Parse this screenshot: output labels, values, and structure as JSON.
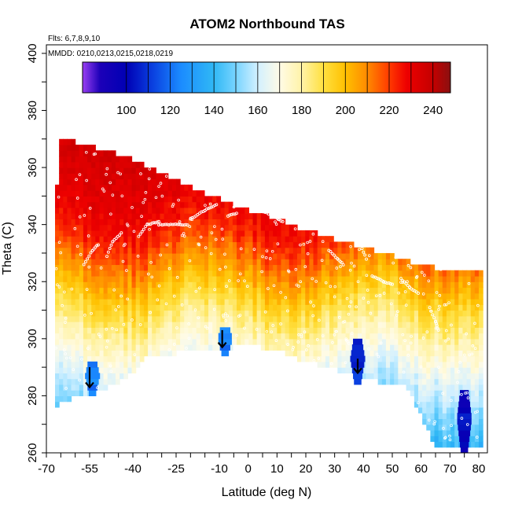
{
  "chart_data": {
    "type": "heatmap",
    "title": "ATOM2 Northbound TAS",
    "annotations": {
      "flights": "Flts: 6,7,8,9,10",
      "dates": "MMDD: 0210,0213,0215,0218,0219"
    },
    "xlabel": "Latitude (deg N)",
    "ylabel": "Theta (C)",
    "xlim": [
      -70,
      83
    ],
    "ylim": [
      260,
      403
    ],
    "x_ticks": [
      "-70",
      "-55",
      "-40",
      "-25",
      "-10",
      "0",
      "10",
      "20",
      "30",
      "40",
      "50",
      "60",
      "70",
      "80"
    ],
    "y_ticks": [
      "260",
      "280",
      "300",
      "320",
      "340",
      "360",
      "380",
      "400"
    ],
    "colorbar": {
      "range": [
        80,
        248
      ],
      "ticks": [
        "100",
        "120",
        "140",
        "160",
        "180",
        "200",
        "220",
        "240"
      ],
      "stops": [
        {
          "v": 80,
          "c": "#9a3ff2"
        },
        {
          "v": 88,
          "c": "#1c00b8"
        },
        {
          "v": 100,
          "c": "#0000b4"
        },
        {
          "v": 112,
          "c": "#0a40e0"
        },
        {
          "v": 125,
          "c": "#1b8cff"
        },
        {
          "v": 140,
          "c": "#30b8f5"
        },
        {
          "v": 150,
          "c": "#78d4ff"
        },
        {
          "v": 160,
          "c": "#d2f0ff"
        },
        {
          "v": 170,
          "c": "#fffbe6"
        },
        {
          "v": 180,
          "c": "#fff3a8"
        },
        {
          "v": 190,
          "c": "#ffe040"
        },
        {
          "v": 200,
          "c": "#ffc000"
        },
        {
          "v": 210,
          "c": "#ff8a00"
        },
        {
          "v": 220,
          "c": "#ff3a00"
        },
        {
          "v": 228,
          "c": "#ee0000"
        },
        {
          "v": 240,
          "c": "#c40000"
        },
        {
          "v": 248,
          "c": "#8a1010"
        }
      ]
    },
    "top_boundary": [
      [
        -67,
        345
      ],
      [
        -65,
        369
      ],
      [
        -60,
        369
      ],
      [
        -50,
        366
      ],
      [
        -40,
        363
      ],
      [
        -30,
        358
      ],
      [
        -20,
        353
      ],
      [
        -10,
        349
      ],
      [
        0,
        345
      ],
      [
        10,
        342
      ],
      [
        20,
        338
      ],
      [
        30,
        335
      ],
      [
        40,
        332
      ],
      [
        50,
        329
      ],
      [
        60,
        326
      ],
      [
        70,
        324
      ],
      [
        80,
        323
      ]
    ],
    "bottom_boundary": [
      [
        -67,
        277
      ],
      [
        -60,
        281
      ],
      [
        -50,
        283
      ],
      [
        -40,
        289
      ],
      [
        -35,
        295
      ],
      [
        -25,
        296
      ],
      [
        -10,
        297
      ],
      [
        0,
        299
      ],
      [
        10,
        297
      ],
      [
        20,
        293
      ],
      [
        35,
        289
      ],
      [
        45,
        286
      ],
      [
        50,
        284
      ],
      [
        55,
        285
      ],
      [
        60,
        274
      ],
      [
        65,
        263
      ],
      [
        72,
        262
      ],
      [
        80,
        262
      ]
    ],
    "profile": [
      [
        262,
        135
      ],
      [
        275,
        150
      ],
      [
        285,
        160
      ],
      [
        292,
        168
      ],
      [
        298,
        175
      ],
      [
        305,
        183
      ],
      [
        312,
        192
      ],
      [
        320,
        203
      ],
      [
        327,
        212
      ],
      [
        333,
        220
      ],
      [
        340,
        226
      ],
      [
        350,
        231
      ],
      [
        365,
        235
      ],
      [
        375,
        237
      ]
    ],
    "low_anomalies": [
      {
        "lat": -54,
        "theta_min": 280,
        "theta_max": 292,
        "value": 122
      },
      {
        "lat": -8,
        "theta_min": 294,
        "theta_max": 304,
        "value": 120
      },
      {
        "lat": 38,
        "theta_min": 284,
        "theta_max": 300,
        "value": 108
      },
      {
        "lat": 75,
        "theta_min": 260,
        "theta_max": 282,
        "value": 100
      }
    ],
    "arrows": [
      {
        "lat": -55,
        "theta_from": 290,
        "theta_to": 283
      },
      {
        "lat": -9,
        "theta_from": 303,
        "theta_to": 297
      },
      {
        "lat": 38,
        "theta_from": 293,
        "theta_to": 288
      }
    ],
    "tropopause_segments": [
      [
        [
          -57,
          326
        ],
        [
          -54,
          331
        ],
        [
          -52,
          333
        ]
      ],
      [
        [
          -49,
          329
        ],
        [
          -47,
          334
        ],
        [
          -44,
          337
        ]
      ],
      [
        [
          -38,
          336
        ],
        [
          -35,
          340
        ],
        [
          -31,
          341
        ]
      ],
      [
        [
          -31,
          340
        ],
        [
          -24,
          340
        ],
        [
          -21,
          340
        ]
      ],
      [
        [
          -20,
          342
        ],
        [
          -15,
          345
        ],
        [
          -11,
          347
        ]
      ],
      [
        [
          -7,
          343
        ],
        [
          -4,
          344
        ]
      ],
      [
        [
          4,
          345
        ],
        [
          9,
          343
        ],
        [
          12,
          341
        ]
      ],
      [
        [
          14,
          344
        ],
        [
          18,
          342
        ]
      ],
      [
        [
          28,
          331
        ],
        [
          31,
          328
        ],
        [
          33,
          326
        ]
      ],
      [
        [
          36,
          337
        ],
        [
          39,
          333
        ],
        [
          41,
          328
        ]
      ],
      [
        [
          43,
          322
        ],
        [
          47,
          320
        ],
        [
          50,
          319
        ]
      ],
      [
        [
          53,
          321
        ],
        [
          56,
          318
        ],
        [
          59,
          316
        ]
      ],
      [
        [
          63,
          311
        ],
        [
          65,
          306
        ],
        [
          66,
          303
        ]
      ]
    ]
  }
}
